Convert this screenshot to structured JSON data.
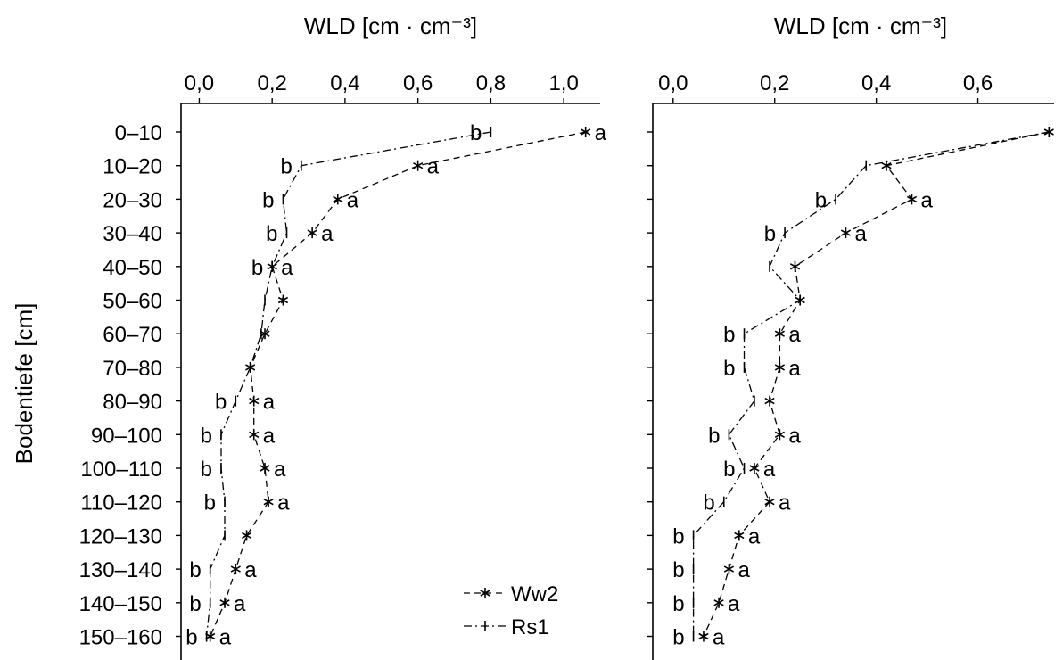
{
  "chart_data": [
    {
      "type": "line",
      "xlabel": "WLD [cm · cm⁻³]",
      "ylabel": "Bodentiefe [cm]",
      "xlim": [
        -0.05,
        1.1
      ],
      "xticks": [
        "0,0",
        "0,2",
        "0,4",
        "0,6",
        "0,8",
        "1,0"
      ],
      "xtick_values": [
        0.0,
        0.2,
        0.4,
        0.6,
        0.8,
        1.0
      ],
      "x_axis_position": "top",
      "grid": false,
      "legend_position": "bottom-right",
      "categories": [
        "0–10",
        "10–20",
        "20–30",
        "30–40",
        "40–50",
        "50–60",
        "60–70",
        "70–80",
        "80–90",
        "90–100",
        "100–110",
        "110–120",
        "120–130",
        "130–140",
        "140–150",
        "150–160"
      ],
      "series": [
        {
          "name": "Ww2",
          "values": [
            1.06,
            0.6,
            0.38,
            0.31,
            0.2,
            0.23,
            0.18,
            0.14,
            0.15,
            0.15,
            0.18,
            0.19,
            0.13,
            0.1,
            0.07,
            0.03
          ],
          "labels": [
            "a",
            "a",
            "a",
            "a",
            "a",
            "",
            "",
            "",
            "a",
            "a",
            "a",
            "a",
            "",
            "a",
            "a",
            "a"
          ]
        },
        {
          "name": "Rs1",
          "values": [
            0.8,
            0.28,
            0.23,
            0.24,
            0.2,
            0.18,
            0.17,
            0.14,
            0.1,
            0.06,
            0.06,
            0.07,
            0.07,
            0.03,
            0.03,
            0.02
          ],
          "labels": [
            "b",
            "b",
            "b",
            "b",
            "b",
            "",
            "",
            "",
            "b",
            "b",
            "b",
            "b",
            "",
            "b",
            "b",
            "b"
          ]
        }
      ]
    },
    {
      "type": "line",
      "xlabel": "WLD [cm · cm⁻³]",
      "ylabel": "",
      "xlim": [
        -0.04,
        0.75
      ],
      "xticks": [
        "0,0",
        "0,2",
        "0,4",
        "0,6"
      ],
      "xtick_values": [
        0.0,
        0.2,
        0.4,
        0.6
      ],
      "x_axis_position": "top",
      "grid": false,
      "categories": [
        "0–10",
        "10–20",
        "20–30",
        "30–40",
        "40–50",
        "50–60",
        "60–70",
        "70–80",
        "80–90",
        "90–100",
        "100–110",
        "110–120",
        "120–130",
        "130–140",
        "140–150",
        "150–160"
      ],
      "series": [
        {
          "name": "Ww2",
          "values": [
            0.74,
            0.42,
            0.47,
            0.34,
            0.24,
            0.25,
            0.21,
            0.21,
            0.19,
            0.21,
            0.16,
            0.19,
            0.13,
            0.11,
            0.09,
            0.06
          ],
          "labels": [
            "",
            "",
            "a",
            "a",
            "",
            "",
            "a",
            "a",
            "",
            "a",
            "a",
            "a",
            "a",
            "a",
            "a",
            "a"
          ]
        },
        {
          "name": "Rs1",
          "values": [
            0.74,
            0.38,
            0.32,
            0.22,
            0.19,
            0.25,
            0.14,
            0.14,
            0.16,
            0.11,
            0.14,
            0.1,
            0.04,
            0.04,
            0.04,
            0.04
          ],
          "labels": [
            "",
            "",
            "b",
            "b",
            "",
            "",
            "b",
            "b",
            "",
            "b",
            "b",
            "b",
            "b",
            "b",
            "b",
            "b"
          ]
        }
      ]
    }
  ]
}
